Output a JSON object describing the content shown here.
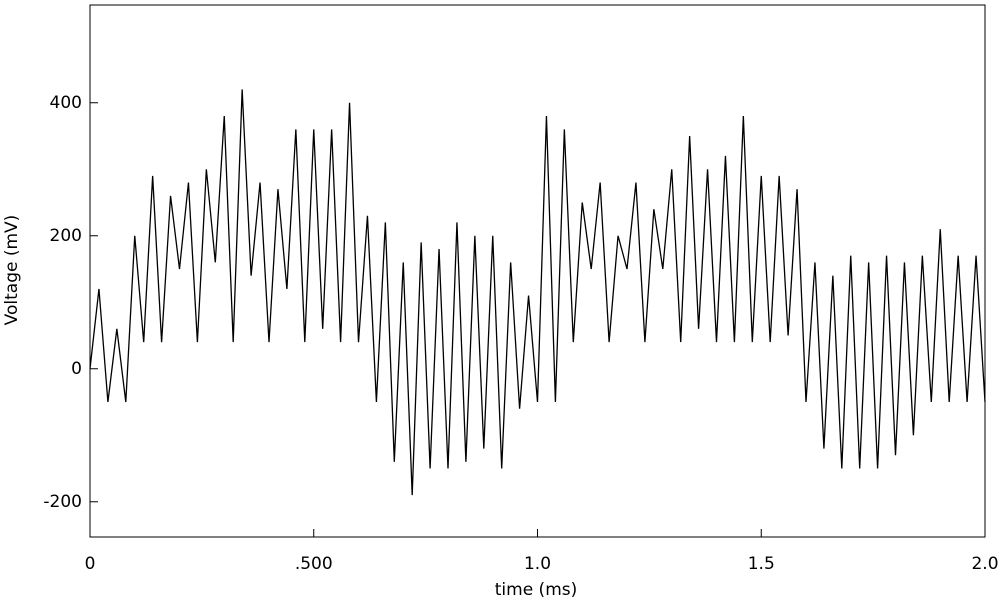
{
  "chart_data": {
    "type": "line",
    "x_label": "time (ms)",
    "y_label": "Voltage (mV)",
    "x": [
      0,
      0.02,
      0.04,
      0.06,
      0.08,
      0.1,
      0.12,
      0.14,
      0.16,
      0.18,
      0.2,
      0.22,
      0.24,
      0.26,
      0.28,
      0.3,
      0.32,
      0.34,
      0.36,
      0.38,
      0.4,
      0.42,
      0.44,
      0.46,
      0.48,
      0.5,
      0.52,
      0.54,
      0.56,
      0.58,
      0.6,
      0.62,
      0.64,
      0.66,
      0.68,
      0.7,
      0.72,
      0.74,
      0.76,
      0.78,
      0.8,
      0.82,
      0.84,
      0.86,
      0.88,
      0.9,
      0.92,
      0.94,
      0.96,
      0.98,
      1.0,
      1.02,
      1.04,
      1.06,
      1.08,
      1.1,
      1.12,
      1.14,
      1.16,
      1.18,
      1.2,
      1.22,
      1.24,
      1.26,
      1.28,
      1.3,
      1.32,
      1.34,
      1.36,
      1.38,
      1.4,
      1.42,
      1.44,
      1.46,
      1.48,
      1.5,
      1.52,
      1.54,
      1.56,
      1.58,
      1.6,
      1.62,
      1.64,
      1.66,
      1.68,
      1.7,
      1.72,
      1.74,
      1.76,
      1.78,
      1.8,
      1.82,
      1.84,
      1.86,
      1.88,
      1.9,
      1.92,
      1.94,
      1.96,
      1.98,
      2.0
    ],
    "values": [
      0,
      120,
      -50,
      60,
      -50,
      200,
      40,
      290,
      40,
      260,
      150,
      280,
      40,
      300,
      160,
      380,
      40,
      420,
      140,
      280,
      40,
      270,
      120,
      360,
      40,
      360,
      60,
      360,
      40,
      400,
      40,
      230,
      -50,
      220,
      -140,
      160,
      -190,
      190,
      -150,
      180,
      -150,
      220,
      -140,
      200,
      -120,
      200,
      -150,
      160,
      -60,
      110,
      -50,
      380,
      -50,
      360,
      40,
      250,
      150,
      280,
      40,
      200,
      150,
      280,
      40,
      240,
      150,
      300,
      40,
      350,
      60,
      300,
      40,
      320,
      40,
      380,
      40,
      290,
      40,
      290,
      50,
      270,
      -50,
      160,
      -120,
      140,
      -150,
      170,
      -150,
      160,
      -150,
      170,
      -130,
      160,
      -100,
      170,
      -50,
      210,
      -50,
      170,
      -50,
      170,
      -50
    ],
    "color": "#000000",
    "xlim": [
      0,
      2.0
    ],
    "ylim": [
      -253,
      547
    ],
    "xticks": [
      0,
      {
        "value": 0.5,
        "label": ".500"
      },
      {
        "value": 1.0,
        "label": "1.0"
      },
      {
        "value": 1.5,
        "label": "1.5"
      },
      {
        "value": 2.0,
        "label": "2.0"
      }
    ],
    "yticks": [
      -200,
      0,
      200,
      400
    ]
  }
}
